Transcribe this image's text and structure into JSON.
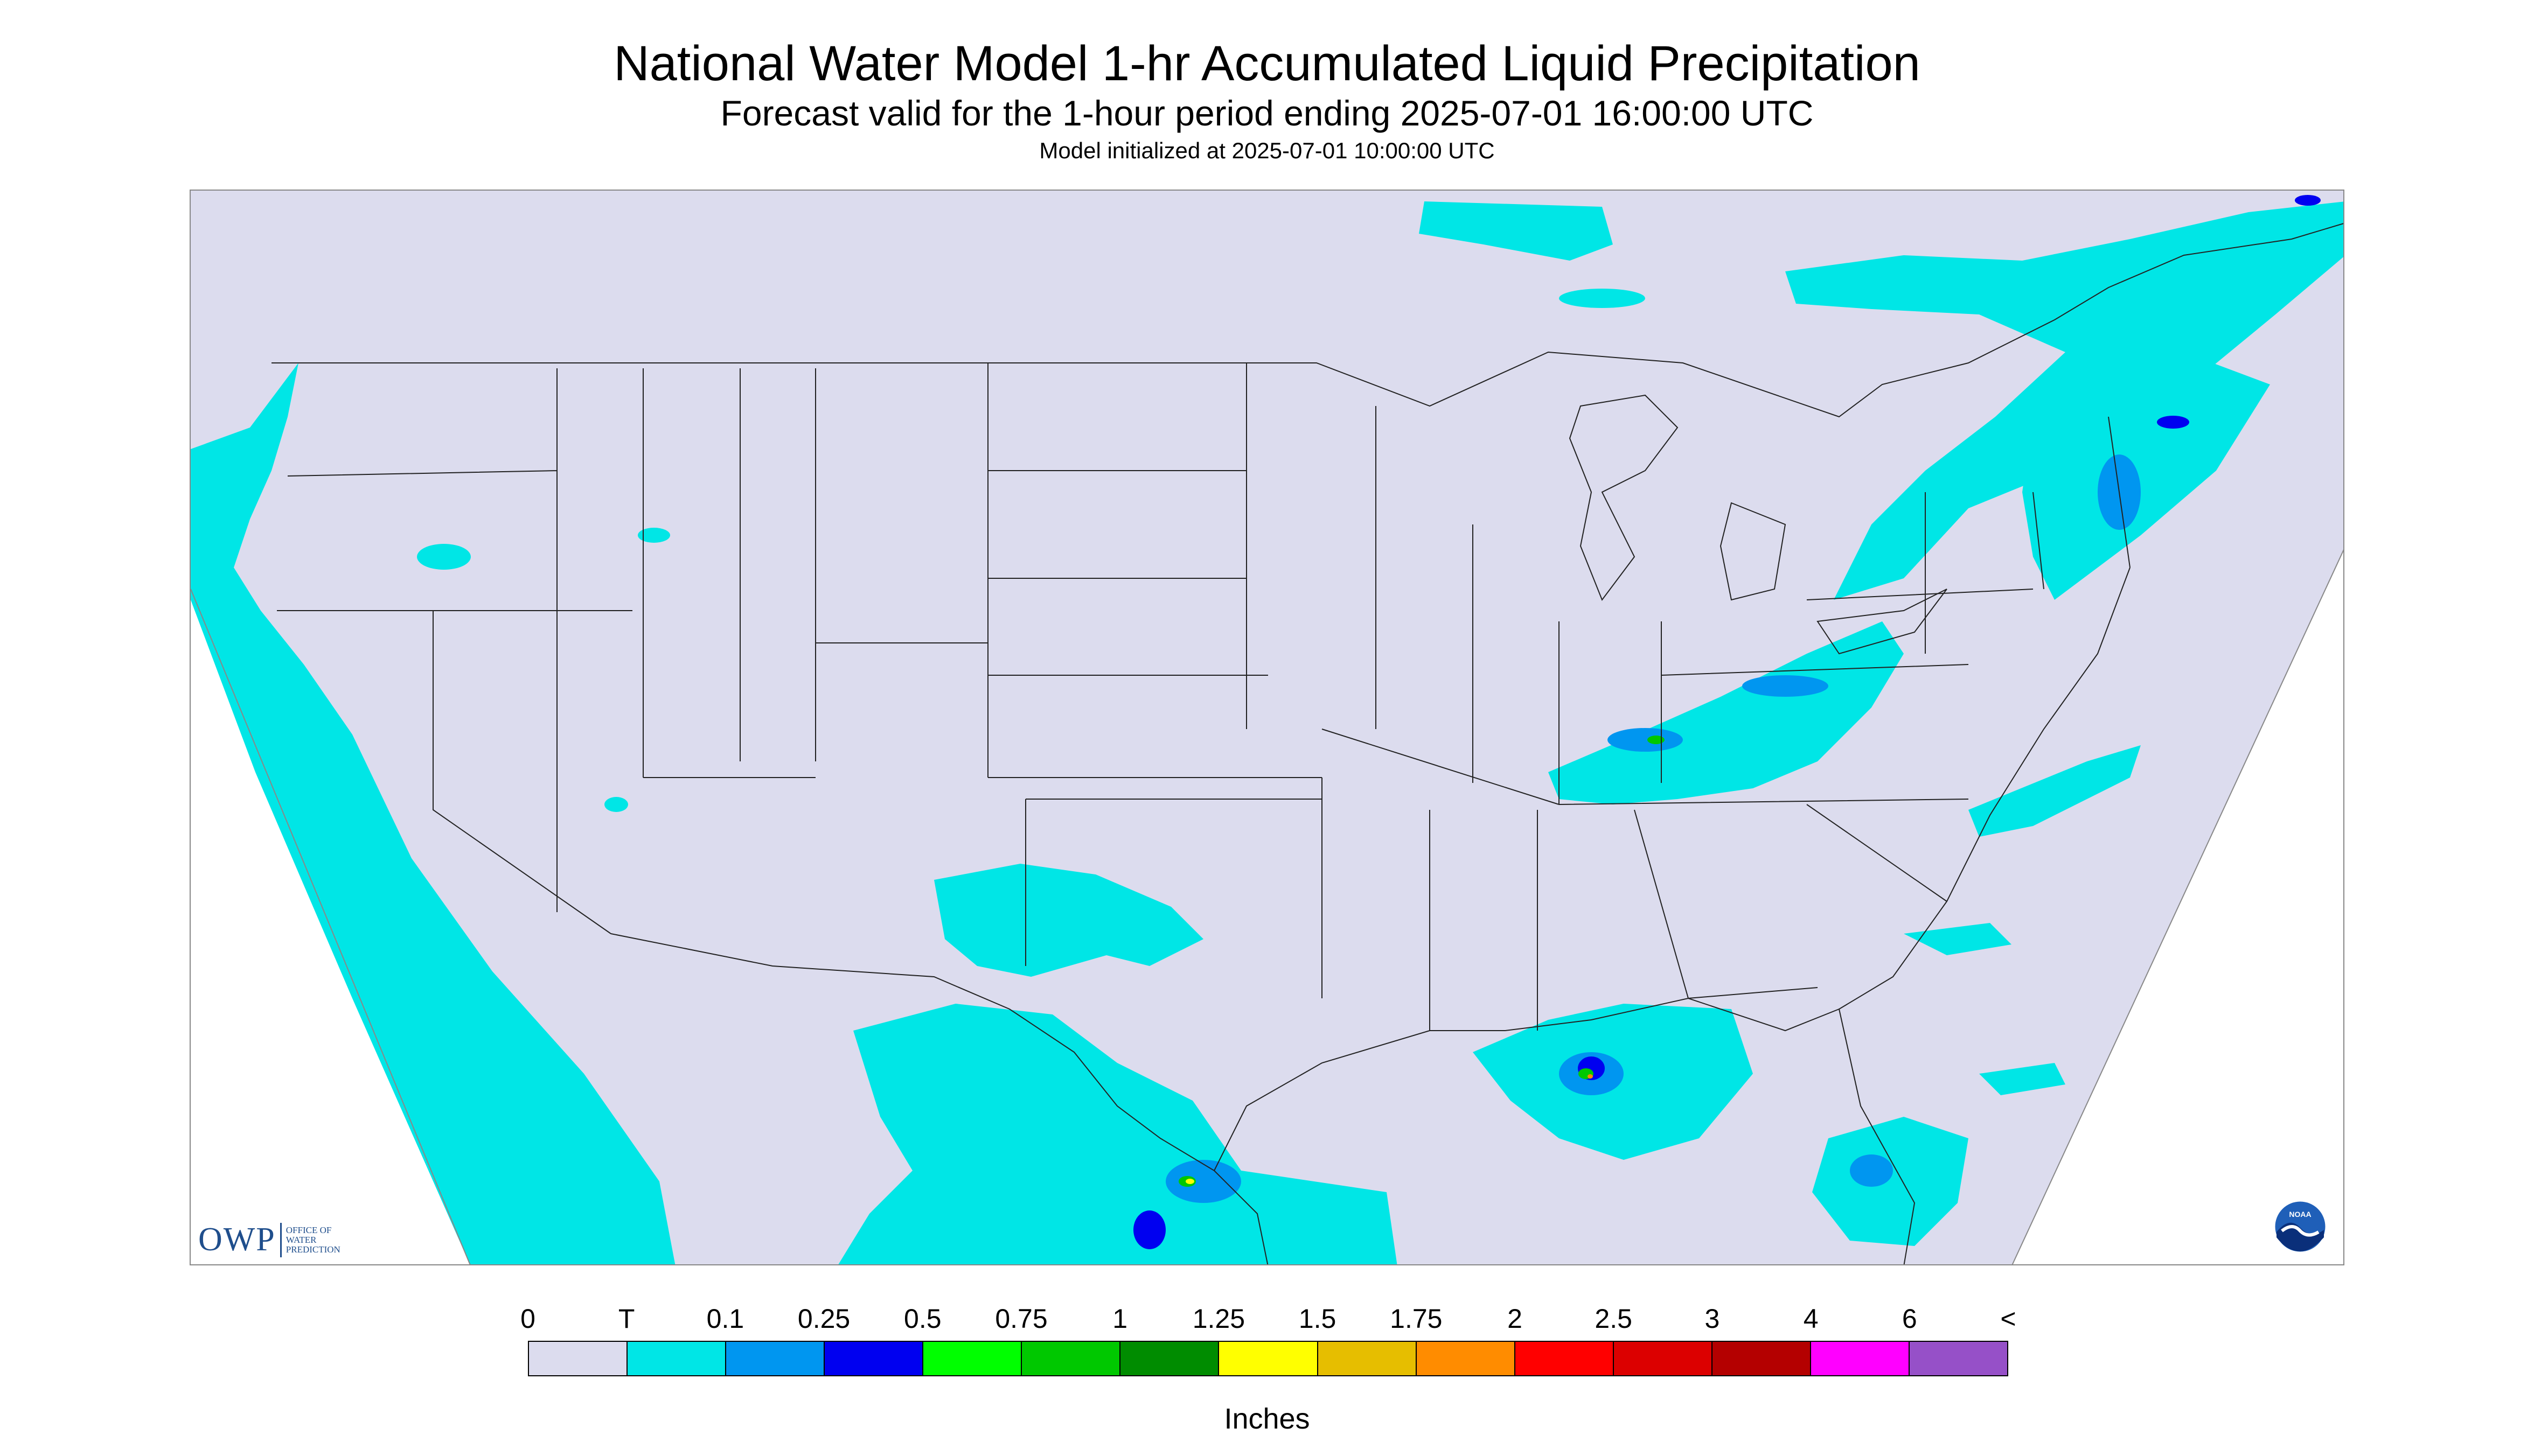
{
  "header": {
    "title": "National Water Model 1-hr Accumulated Liquid Precipitation",
    "subtitle": "Forecast valid for the 1-hour period ending 2025-07-01 16:00:00 UTC",
    "init": "Model initialized at 2025-07-01 10:00:00 UTC"
  },
  "branding": {
    "owp_short": "OWP",
    "owp_long": [
      "OFFICE OF",
      "WATER",
      "PREDICTION"
    ],
    "noaa_text": "NOAA"
  },
  "legend": {
    "labels": [
      "0",
      "T",
      "0.1",
      "0.25",
      "0.5",
      "0.75",
      "1",
      "1.25",
      "1.5",
      "1.75",
      "2",
      "2.5",
      "3",
      "4",
      "6",
      "<"
    ],
    "colors": [
      "#dcdcee",
      "#00e6e6",
      "#0096f0",
      "#0000f0",
      "#00ff00",
      "#00c800",
      "#008c00",
      "#ffff00",
      "#e6be00",
      "#ff8c00",
      "#ff0000",
      "#dc0000",
      "#b40000",
      "#ff00ff",
      "#9650c8"
    ],
    "units": "Inches"
  },
  "map": {
    "background_color": "#dcdcee",
    "boundary_color": "#222222",
    "precip_colors": {
      "trace": "#00e6e6",
      "light": "#0096f0",
      "moderate": "#0000f0",
      "heavy_green": "#00c800",
      "heavy_yellow": "#ffff00",
      "heavy_orange": "#ff8c00"
    }
  }
}
